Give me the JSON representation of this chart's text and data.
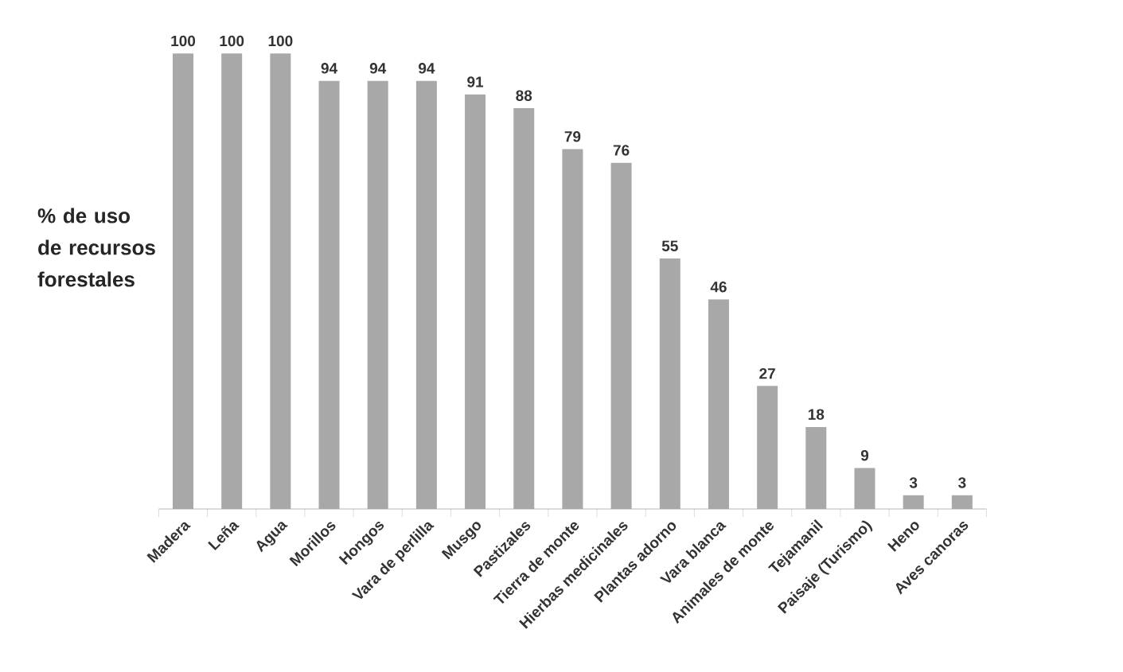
{
  "chart_data": {
    "type": "bar",
    "ylabel": "% de uso de recursos forestales",
    "categories": [
      "Madera",
      "Leña",
      "Agua",
      "Morillos",
      "Hongos",
      "Vara de perlilla",
      "Musgo",
      "Pastizales",
      "Tierra de monte",
      "Hierbas medicinales",
      "Plantas adorno",
      "Vara blanca",
      "Animales de monte",
      "Tejamanil",
      "Paisaje (Turismo)",
      "Heno",
      "Aves canoras"
    ],
    "values": [
      100,
      100,
      100,
      94,
      94,
      94,
      91,
      88,
      79,
      76,
      55,
      46,
      27,
      18,
      9,
      3,
      3
    ],
    "color": "#a8a8a8",
    "data_labels": true
  }
}
